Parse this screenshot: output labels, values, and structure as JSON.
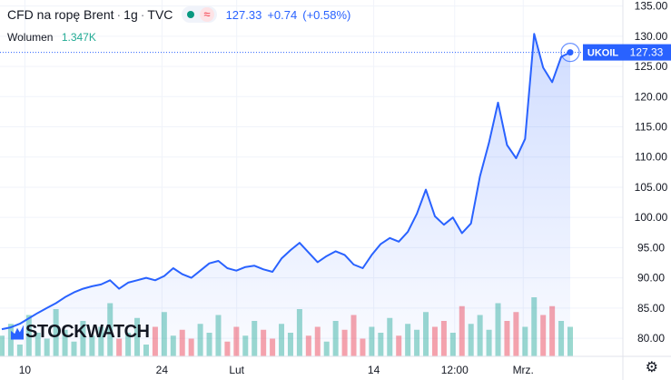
{
  "legend": {
    "title": "CFD na ropę Brent",
    "interval": "1g",
    "source": "TVC",
    "price": "127.33",
    "change": "+0.74",
    "change_pct": "(+0.58%)",
    "wave_glyph": "≈",
    "volume_label": "Wolumen",
    "volume_value": "1.347K"
  },
  "branding": {
    "logo_text": "STOCKWATCH"
  },
  "colors": {
    "line": "#2962ff",
    "up": "#22ab94",
    "down": "#f23645",
    "grid": "#f0f3fa"
  },
  "chart_data": {
    "type": "line",
    "title": "",
    "xlabel": "",
    "ylabel": "",
    "ylim": [
      77,
      136
    ],
    "y_ticks": [
      80.0,
      85.0,
      90.0,
      95.0,
      100.0,
      105.0,
      110.0,
      115.0,
      120.0,
      125.0,
      130.0,
      135.0
    ],
    "x_ticks": [
      {
        "label": "10",
        "x": 0.04
      },
      {
        "label": "24",
        "x": 0.26
      },
      {
        "label": "Lut",
        "x": 0.38
      },
      {
        "label": "14",
        "x": 0.6
      },
      {
        "label": "12:00",
        "x": 0.73
      },
      {
        "label": "Mrz.",
        "x": 0.84
      }
    ],
    "series": [
      {
        "values": [
          81.5,
          81.8,
          82.4,
          83.3,
          84.2,
          85.0,
          85.8,
          86.8,
          87.6,
          88.2,
          88.6,
          88.9,
          89.6,
          88.2,
          89.2,
          89.6,
          90.0,
          89.6,
          90.3,
          91.6,
          90.6,
          90.0,
          91.2,
          92.4,
          92.8,
          91.6,
          91.2,
          91.8,
          92.0,
          91.4,
          91.0,
          93.2,
          94.6,
          95.8,
          94.2,
          92.6,
          93.6,
          94.4,
          93.8,
          92.2,
          91.6,
          93.8,
          95.6,
          96.6,
          96.0,
          97.6,
          100.6,
          104.6,
          100.2,
          98.8,
          100.0,
          97.4,
          99.0,
          106.8,
          112.4,
          119.0,
          112.0,
          109.8,
          113.0,
          130.4,
          124.8,
          122.4,
          126.6,
          127.33
        ]
      }
    ],
    "last_value_label": {
      "symbol": "UKOIL",
      "value": "127.33"
    },
    "volume": [
      0.35,
      0.55,
      0.2,
      0.7,
      0.4,
      0.3,
      0.8,
      0.45,
      0.25,
      0.6,
      0.35,
      0.5,
      0.9,
      0.3,
      0.4,
      0.65,
      0.2,
      0.5,
      0.75,
      0.35,
      0.45,
      0.3,
      0.55,
      0.4,
      0.7,
      0.25,
      0.5,
      0.35,
      0.6,
      0.45,
      0.3,
      0.55,
      0.4,
      0.8,
      0.35,
      0.5,
      0.25,
      0.6,
      0.45,
      0.7,
      0.3,
      0.5,
      0.4,
      0.65,
      0.35,
      0.55,
      0.45,
      0.75,
      0.5,
      0.6,
      0.4,
      0.85,
      0.55,
      0.7,
      0.45,
      0.9,
      0.6,
      0.75,
      0.5,
      1.0,
      0.7,
      0.85,
      0.6,
      0.5
    ],
    "grid": true
  }
}
